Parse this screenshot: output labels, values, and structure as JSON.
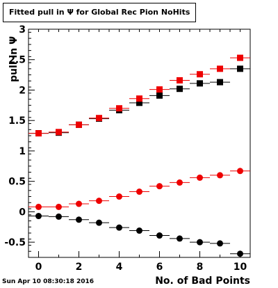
{
  "header": {
    "title": "Fitted pull in  Ψ  for Global Rec Pion NoHits"
  },
  "footer": {
    "timestamp": "Sun Apr 10 08:30:18 2016"
  },
  "colors": {
    "red": "#ee0000",
    "black": "#000000"
  },
  "chart_data": {
    "type": "scatter",
    "title": "Fitted pull in  Ψ  for Global Rec Pion NoHits",
    "xlabel": "No. of Bad Points",
    "ylabel": "pull in  Ψ",
    "xlim": [
      -0.5,
      10.5
    ],
    "ylim": [
      -0.75,
      3
    ],
    "x_ticks": [
      0,
      2,
      4,
      6,
      8,
      10
    ],
    "y_ticks": [
      -0.5,
      0,
      0.5,
      1,
      1.5,
      2,
      2.5,
      3
    ],
    "x_tick_labels": [
      "0",
      "2",
      "4",
      "6",
      "8",
      "10"
    ],
    "y_tick_labels": [
      "-0.5",
      "0",
      "0.5",
      "1",
      "1.5",
      "2",
      "2.5",
      "3"
    ],
    "x": [
      0,
      1,
      2,
      3,
      4,
      5,
      6,
      7,
      8,
      9,
      10
    ],
    "series": [
      {
        "marker": "square",
        "color": "#000000",
        "values": [
          1.29,
          1.3,
          1.43,
          1.53,
          1.67,
          1.79,
          1.91,
          2.02,
          2.11,
          2.13,
          2.35
        ]
      },
      {
        "marker": "square",
        "color": "#ee0000",
        "values": [
          1.29,
          1.31,
          1.43,
          1.54,
          1.7,
          1.86,
          2.01,
          2.16,
          2.26,
          2.35,
          2.53
        ]
      },
      {
        "marker": "circle",
        "color": "#ee0000",
        "values": [
          0.08,
          0.08,
          0.13,
          0.18,
          0.25,
          0.33,
          0.42,
          0.48,
          0.56,
          0.6,
          0.67
        ]
      },
      {
        "marker": "circle",
        "color": "#000000",
        "values": [
          -0.07,
          -0.08,
          -0.13,
          -0.18,
          -0.26,
          -0.31,
          -0.39,
          -0.44,
          -0.5,
          -0.52,
          -0.69
        ]
      }
    ],
    "grid": false,
    "legend": "none"
  }
}
